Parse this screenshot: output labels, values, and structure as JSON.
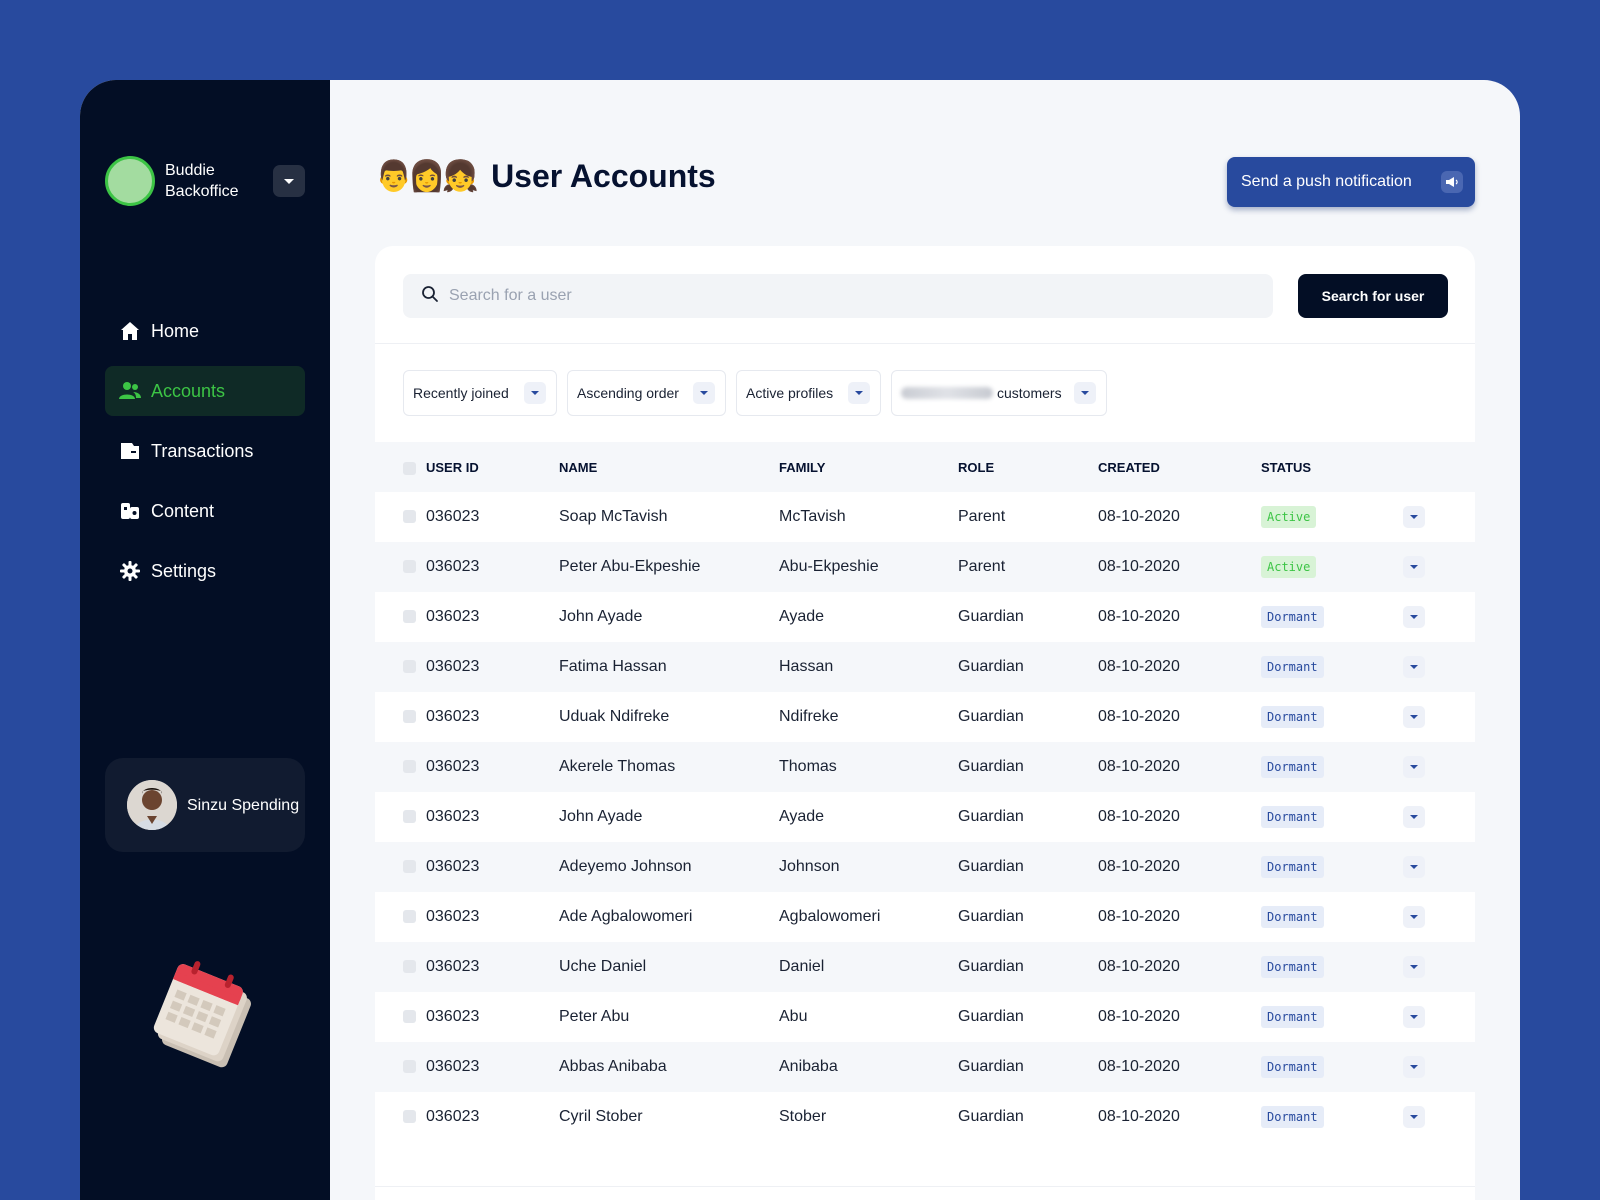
{
  "brand": {
    "name": "Buddie Backoffice"
  },
  "nav": [
    {
      "label": "Home",
      "icon": "home-icon",
      "active": false
    },
    {
      "label": "Accounts",
      "icon": "users-icon",
      "active": true
    },
    {
      "label": "Transactions",
      "icon": "wallet-icon",
      "active": false
    },
    {
      "label": "Content",
      "icon": "content-icon",
      "active": false
    },
    {
      "label": "Settings",
      "icon": "gear-icon",
      "active": false
    }
  ],
  "profile": {
    "name": "Sinzu Spending"
  },
  "page": {
    "emoji": "👨👩👧",
    "title": "User Accounts",
    "push_button": "Send a push notification"
  },
  "search": {
    "placeholder": "Search for a user",
    "button": "Search for user"
  },
  "filters": [
    {
      "label": "Recently joined"
    },
    {
      "label": "Ascending order"
    },
    {
      "label": "Active profiles"
    },
    {
      "label": "customers"
    }
  ],
  "table": {
    "columns": [
      "USER ID",
      "NAME",
      "FAMILY",
      "ROLE",
      "CREATED",
      "STATUS"
    ],
    "rows": [
      {
        "id": "036023",
        "name": "Soap McTavish",
        "family": "McTavish",
        "role": "Parent",
        "created": "08-10-2020",
        "status": "Active"
      },
      {
        "id": "036023",
        "name": "Peter Abu-Ekpeshie",
        "family": "Abu-Ekpeshie",
        "role": "Parent",
        "created": "08-10-2020",
        "status": "Active"
      },
      {
        "id": "036023",
        "name": "John Ayade",
        "family": "Ayade",
        "role": "Guardian",
        "created": "08-10-2020",
        "status": "Dormant"
      },
      {
        "id": "036023",
        "name": "Fatima Hassan",
        "family": "Hassan",
        "role": "Guardian",
        "created": "08-10-2020",
        "status": "Dormant"
      },
      {
        "id": "036023",
        "name": "Uduak Ndifreke",
        "family": "Ndifreke",
        "role": "Guardian",
        "created": "08-10-2020",
        "status": "Dormant"
      },
      {
        "id": "036023",
        "name": "Akerele Thomas",
        "family": "Thomas",
        "role": "Guardian",
        "created": "08-10-2020",
        "status": "Dormant"
      },
      {
        "id": "036023",
        "name": "John Ayade",
        "family": "Ayade",
        "role": "Guardian",
        "created": "08-10-2020",
        "status": "Dormant"
      },
      {
        "id": "036023",
        "name": "Adeyemo Johnson",
        "family": "Johnson",
        "role": "Guardian",
        "created": "08-10-2020",
        "status": "Dormant"
      },
      {
        "id": "036023",
        "name": "Ade Agbalowomeri",
        "family": "Agbalowomeri",
        "role": "Guardian",
        "created": "08-10-2020",
        "status": "Dormant"
      },
      {
        "id": "036023",
        "name": "Uche Daniel",
        "family": "Daniel",
        "role": "Guardian",
        "created": "08-10-2020",
        "status": "Dormant"
      },
      {
        "id": "036023",
        "name": "Peter Abu",
        "family": "Abu",
        "role": "Guardian",
        "created": "08-10-2020",
        "status": "Dormant"
      },
      {
        "id": "036023",
        "name": "Abbas Anibaba",
        "family": "Anibaba",
        "role": "Guardian",
        "created": "08-10-2020",
        "status": "Dormant"
      },
      {
        "id": "036023",
        "name": "Cyril Stober",
        "family": "Stober",
        "role": "Guardian",
        "created": "08-10-2020",
        "status": "Dormant"
      }
    ]
  },
  "colors": {
    "background": "#284a9e",
    "sidebar": "#030e25",
    "accent_green": "#3cc445",
    "accent_blue": "#284a9e"
  }
}
